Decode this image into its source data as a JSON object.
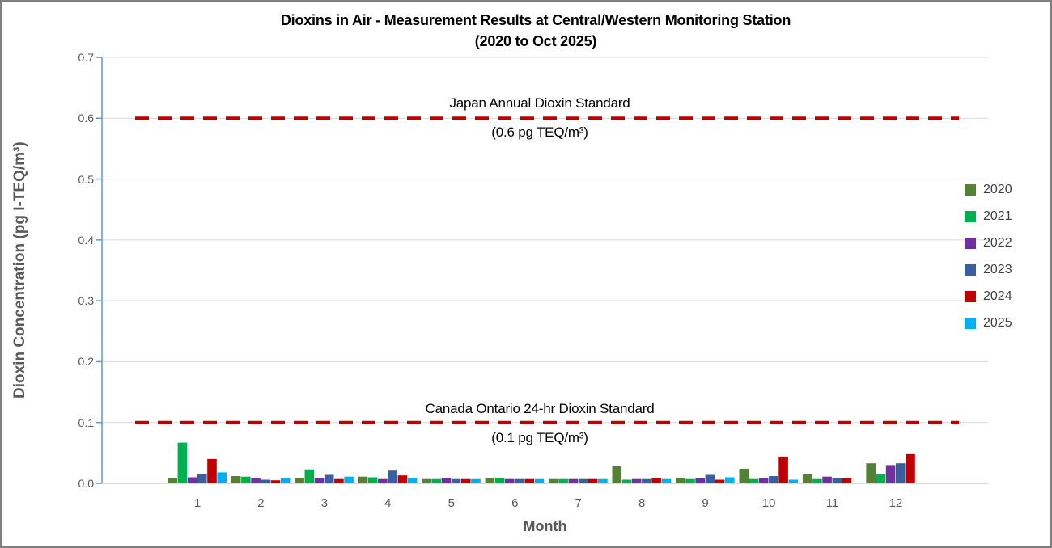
{
  "header": {
    "title_line1": "Dioxins in Air - Measurement Results at Central/Western Monitoring Station",
    "title_line2": "(2020 to Oct 2025)"
  },
  "chart_data": {
    "type": "bar",
    "title": "Dioxins in Air - Measurement Results at Central/Western Monitoring Station (2020 to Oct 2025)",
    "xlabel": "Month",
    "ylabel": "Dioxin Concentration (pg I-TEQ/m³)",
    "ylim": [
      0,
      0.7
    ],
    "yticks": [
      "0.0",
      "0.1",
      "0.2",
      "0.3",
      "0.4",
      "0.5",
      "0.6",
      "0.7"
    ],
    "grid": true,
    "legend_position": "right",
    "categories": [
      "1",
      "2",
      "3",
      "4",
      "5",
      "6",
      "7",
      "8",
      "9",
      "10",
      "11",
      "12"
    ],
    "series": [
      {
        "name": "2020",
        "color": "#538135",
        "values": [
          0.008,
          0.012,
          0.008,
          0.011,
          0.007,
          0.008,
          0.007,
          0.028,
          0.009,
          0.024,
          0.015,
          0.033
        ]
      },
      {
        "name": "2021",
        "color": "#00B050",
        "values": [
          0.067,
          0.011,
          0.023,
          0.01,
          0.007,
          0.009,
          0.007,
          0.006,
          0.007,
          0.007,
          0.007,
          0.015
        ]
      },
      {
        "name": "2022",
        "color": "#7030A0",
        "values": [
          0.01,
          0.008,
          0.008,
          0.007,
          0.008,
          0.007,
          0.007,
          0.007,
          0.008,
          0.008,
          0.011,
          0.03
        ]
      },
      {
        "name": "2023",
        "color": "#3A5F9F",
        "values": [
          0.015,
          0.006,
          0.014,
          0.021,
          0.007,
          0.007,
          0.007,
          0.007,
          0.014,
          0.012,
          0.008,
          0.033
        ]
      },
      {
        "name": "2024",
        "color": "#C00000",
        "values": [
          0.04,
          0.005,
          0.007,
          0.013,
          0.007,
          0.007,
          0.007,
          0.009,
          0.006,
          0.044,
          0.008,
          0.048
        ]
      },
      {
        "name": "2025",
        "color": "#00B0F0",
        "values": [
          0.018,
          0.008,
          0.011,
          0.009,
          0.007,
          0.007,
          0.007,
          0.007,
          0.01,
          0.006,
          null,
          null
        ]
      }
    ],
    "reference_lines": [
      {
        "value": 0.6,
        "label": "Japan Annual Dioxin Standard",
        "sublabel": "(0.6 pg TEQ/m³)",
        "color": "#C00000"
      },
      {
        "value": 0.1,
        "label": "Canada Ontario 24-hr Dioxin Standard",
        "sublabel": "(0.1 pg TEQ/m³)",
        "color": "#C00000"
      }
    ],
    "colors": {
      "axis_line": "#5B9BD5",
      "gridline": "#D9D9D9",
      "tick_text": "#595959",
      "axis_title_text": "#595959",
      "legend_text": "#404040",
      "title_text": "#000000",
      "border": "#7F7F7F"
    }
  }
}
